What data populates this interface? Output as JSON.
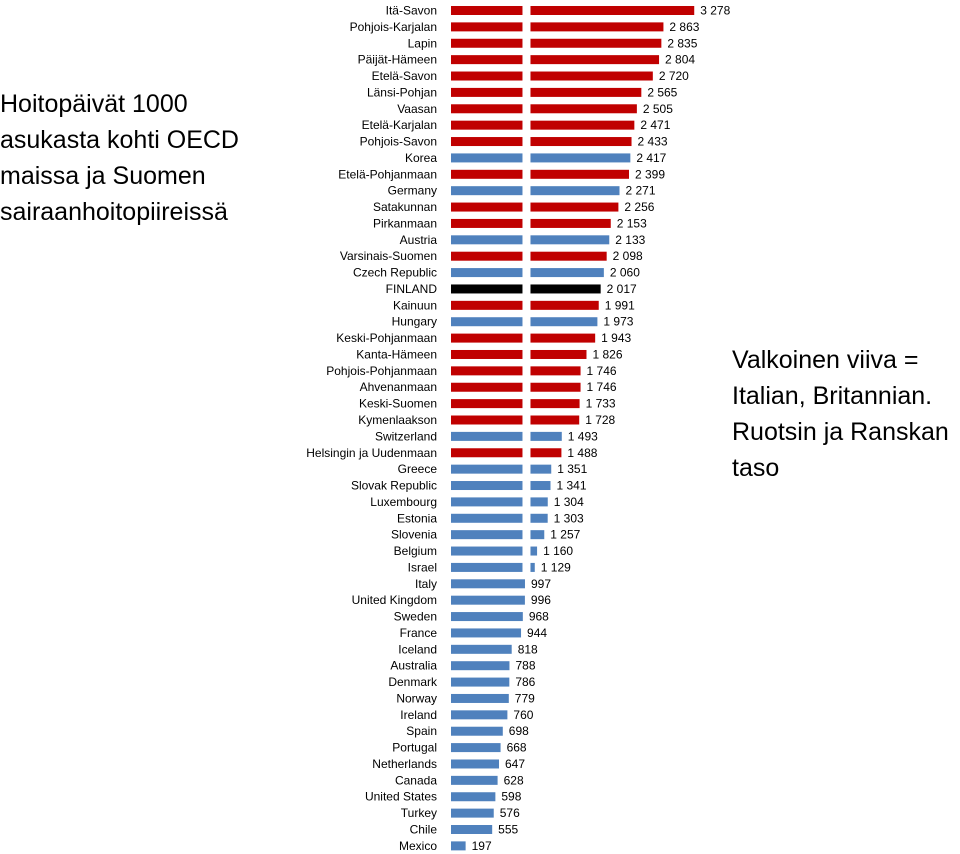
{
  "title": "Hoitopäivät 1000\nasukasta kohti OECD\nmaissa ja Suomen\nsairaanhoitopiireissä",
  "note": "Valkoinen viiva =\nItalian, Britannian.\nRuotsin ja Ranskan\ntaso",
  "colors": {
    "district": "#c00000",
    "country": "#4f81bd",
    "finland": "#000000",
    "reference_line": "#ffffff"
  },
  "chart_data": {
    "type": "bar",
    "orientation": "horizontal",
    "title": "Hoitopäivät 1000 asukasta kohti OECD maissa ja Suomen sairaanhoitopiireissä",
    "reference_value": 997,
    "categories": [
      "Itä-Savon",
      "Pohjois-Karjalan",
      "Lapin",
      "Päijät-Hämeen",
      "Etelä-Savon",
      "Länsi-Pohjan",
      "Vaasan",
      "Etelä-Karjalan",
      "Pohjois-Savon",
      "Korea",
      "Etelä-Pohjanmaan",
      "Germany",
      "Satakunnan",
      "Pirkanmaan",
      "Austria",
      "Varsinais-Suomen",
      "Czech Republic",
      "FINLAND",
      "Kainuun",
      "Hungary",
      "Keski-Pohjanmaan",
      "Kanta-Hämeen",
      "Pohjois-Pohjanmaan",
      "Ahvenanmaan",
      "Keski-Suomen",
      "Kymenlaakson",
      "Switzerland",
      "Helsingin ja Uudenmaan",
      "Greece",
      "Slovak Republic",
      "Luxembourg",
      "Estonia",
      "Slovenia",
      "Belgium",
      "Israel",
      "Italy",
      "United Kingdom",
      "Sweden",
      "France",
      "Iceland",
      "Australia",
      "Denmark",
      "Norway",
      "Ireland",
      "Spain",
      "Portugal",
      "Netherlands",
      "Canada",
      "United States",
      "Turkey",
      "Chile",
      "Mexico"
    ],
    "values": [
      3278,
      2863,
      2835,
      2804,
      2720,
      2565,
      2505,
      2471,
      2433,
      2417,
      2399,
      2271,
      2256,
      2153,
      2133,
      2098,
      2060,
      2017,
      1991,
      1973,
      1943,
      1826,
      1746,
      1746,
      1733,
      1728,
      1493,
      1488,
      1351,
      1341,
      1304,
      1303,
      1257,
      1160,
      1129,
      997,
      996,
      968,
      944,
      818,
      788,
      786,
      779,
      760,
      698,
      668,
      647,
      628,
      598,
      576,
      555,
      197
    ],
    "value_labels": [
      "3 278",
      "2 863",
      "2 835",
      "2 804",
      "2 720",
      "2 565",
      "2 505",
      "2 471",
      "2 433",
      "2 417",
      "2 399",
      "2 271",
      "2 256",
      "2 153",
      "2 133",
      "2 098",
      "2 060",
      "2 017",
      "1 991",
      "1 973",
      "1 943",
      "1 826",
      "1 746",
      "1 746",
      "1 733",
      "1 728",
      "1 493",
      "1 488",
      "1 351",
      "1 341",
      "1 304",
      "1 303",
      "1 257",
      "1 160",
      "1 129",
      "997",
      "996",
      "968",
      "944",
      "818",
      "788",
      "786",
      "779",
      "760",
      "698",
      "668",
      "647",
      "628",
      "598",
      "576",
      "555",
      "197"
    ],
    "groups": [
      "district",
      "district",
      "district",
      "district",
      "district",
      "district",
      "district",
      "district",
      "district",
      "country",
      "district",
      "country",
      "district",
      "district",
      "country",
      "district",
      "country",
      "finland",
      "district",
      "country",
      "district",
      "district",
      "district",
      "district",
      "district",
      "district",
      "country",
      "district",
      "country",
      "country",
      "country",
      "country",
      "country",
      "country",
      "country",
      "country",
      "country",
      "country",
      "country",
      "country",
      "country",
      "country",
      "country",
      "country",
      "country",
      "country",
      "country",
      "country",
      "country",
      "country",
      "country",
      "country"
    ]
  }
}
